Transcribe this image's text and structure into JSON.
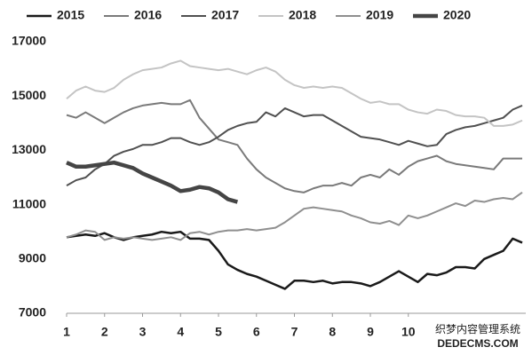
{
  "chart_data": {
    "type": "line",
    "x": [
      1,
      1.25,
      1.5,
      1.75,
      2,
      2.25,
      2.5,
      2.75,
      3,
      3.25,
      3.5,
      3.75,
      4,
      4.25,
      4.5,
      4.75,
      5,
      5.25,
      5.5,
      5.75,
      6,
      6.25,
      6.5,
      6.75,
      7,
      7.25,
      7.5,
      7.75,
      8,
      8.25,
      8.5,
      8.75,
      9,
      9.25,
      9.5,
      9.75,
      10,
      10.25,
      10.5,
      10.75,
      11,
      11.25,
      11.5,
      11.75,
      12,
      12.25,
      12.5,
      12.75,
      13
    ],
    "series": [
      {
        "name": "2015",
        "color": "#1a1a1a",
        "width": 2.5,
        "values": [
          9800,
          9850,
          9900,
          9850,
          9950,
          9800,
          9700,
          9800,
          9850,
          9900,
          10000,
          9950,
          10000,
          9750,
          9750,
          9700,
          9300,
          8800,
          8600,
          8450,
          8350,
          8200,
          8050,
          7900,
          8200,
          8200,
          8150,
          8200,
          8100,
          8150,
          8150,
          8100,
          8000,
          8150,
          8350,
          8550,
          8350,
          8150,
          8450,
          8400,
          8500,
          8700,
          8700,
          8650,
          9000,
          9150,
          9300,
          9750,
          9600
        ]
      },
      {
        "name": "2016",
        "color": "#7a7a7a",
        "width": 2,
        "values": [
          14300,
          14200,
          14400,
          14200,
          14000,
          14200,
          14400,
          14550,
          14650,
          14700,
          14750,
          14700,
          14700,
          14850,
          14200,
          13800,
          13400,
          13300,
          13200,
          12700,
          12300,
          12000,
          11800,
          11600,
          11500,
          11450,
          11600,
          11700,
          11700,
          11800,
          11700,
          12000,
          12100,
          12000,
          12300,
          12100,
          12400,
          12600,
          12700,
          12800,
          12600,
          12500,
          12450,
          12400,
          12350,
          12300,
          12700,
          12700,
          12700
        ]
      },
      {
        "name": "2017",
        "color": "#505050",
        "width": 2,
        "values": [
          11700,
          11900,
          12000,
          12300,
          12500,
          12800,
          12950,
          13050,
          13200,
          13200,
          13300,
          13450,
          13450,
          13300,
          13200,
          13300,
          13500,
          13750,
          13900,
          14000,
          14050,
          14400,
          14250,
          14550,
          14400,
          14250,
          14300,
          14300,
          14100,
          13900,
          13700,
          13500,
          13450,
          13400,
          13300,
          13200,
          13350,
          13250,
          13150,
          13200,
          13600,
          13750,
          13850,
          13900,
          14000,
          14100,
          14200,
          14500,
          14650
        ]
      },
      {
        "name": "2018",
        "color": "#c4c4c4",
        "width": 2,
        "values": [
          14900,
          15200,
          15350,
          15200,
          15150,
          15300,
          15600,
          15800,
          15950,
          16000,
          16050,
          16200,
          16300,
          16100,
          16050,
          16000,
          15950,
          16000,
          15900,
          15800,
          15950,
          16050,
          15900,
          15600,
          15400,
          15300,
          15350,
          15300,
          15350,
          15300,
          15100,
          14900,
          14750,
          14800,
          14700,
          14700,
          14500,
          14400,
          14350,
          14500,
          14450,
          14300,
          14250,
          14250,
          14200,
          13900,
          13900,
          13950,
          14100
        ]
      },
      {
        "name": "2019",
        "color": "#8f8f8f",
        "width": 2,
        "values": [
          9800,
          9900,
          10050,
          10000,
          9700,
          9800,
          9750,
          9800,
          9750,
          9700,
          9750,
          9800,
          9700,
          9950,
          10000,
          9900,
          10000,
          10050,
          10050,
          10100,
          10050,
          10100,
          10150,
          10350,
          10600,
          10850,
          10900,
          10850,
          10800,
          10750,
          10600,
          10500,
          10350,
          10300,
          10400,
          10250,
          10600,
          10500,
          10600,
          10750,
          10900,
          11050,
          10950,
          11150,
          11100,
          11200,
          11250,
          11200,
          11450
        ]
      },
      {
        "name": "2020",
        "color": "#454545",
        "width": 4.5,
        "values": [
          12550,
          12400,
          12400,
          12450,
          12500,
          12550,
          12450,
          12350,
          12150,
          12000,
          11850,
          11700,
          11500,
          11550,
          11650,
          11600,
          11450,
          11200,
          11100,
          null,
          null,
          null,
          null,
          null,
          null,
          null,
          null,
          null,
          null,
          null,
          null,
          null,
          null,
          null,
          null,
          null,
          null,
          null,
          null,
          null,
          null,
          null,
          null,
          null,
          null,
          null,
          null,
          null,
          null
        ]
      }
    ],
    "xlim": [
      1,
      13
    ],
    "xticks": [
      1,
      2,
      3,
      4,
      5,
      6,
      7,
      8,
      9,
      10
    ],
    "ylim": [
      7000,
      17000
    ],
    "yticks": [
      7000,
      9000,
      11000,
      13000,
      15000,
      17000
    ],
    "legend": "top",
    "watermark": [
      "织梦内容管理系统",
      "DEDECMS.COM"
    ]
  }
}
